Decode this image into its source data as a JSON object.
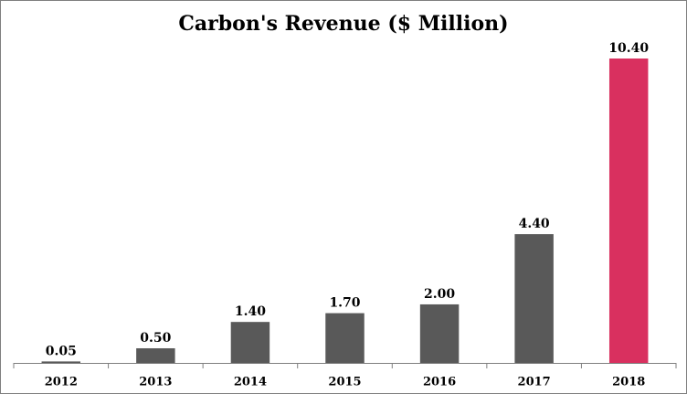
{
  "chart_data": {
    "type": "bar",
    "title": "Carbon's Revenue ($ Million)",
    "categories": [
      "2012",
      "2013",
      "2014",
      "2015",
      "2016",
      "2017",
      "2018"
    ],
    "values": [
      0.05,
      0.5,
      1.4,
      1.7,
      2,
      4.4,
      10.4
    ],
    "value_labels": [
      "0.05",
      "0.50",
      "1.40",
      "1.70",
      "2.00",
      "4.40",
      "10.40"
    ],
    "colors": [
      "#595959",
      "#595959",
      "#595959",
      "#595959",
      "#595959",
      "#595959",
      "#d9305f"
    ]
  }
}
